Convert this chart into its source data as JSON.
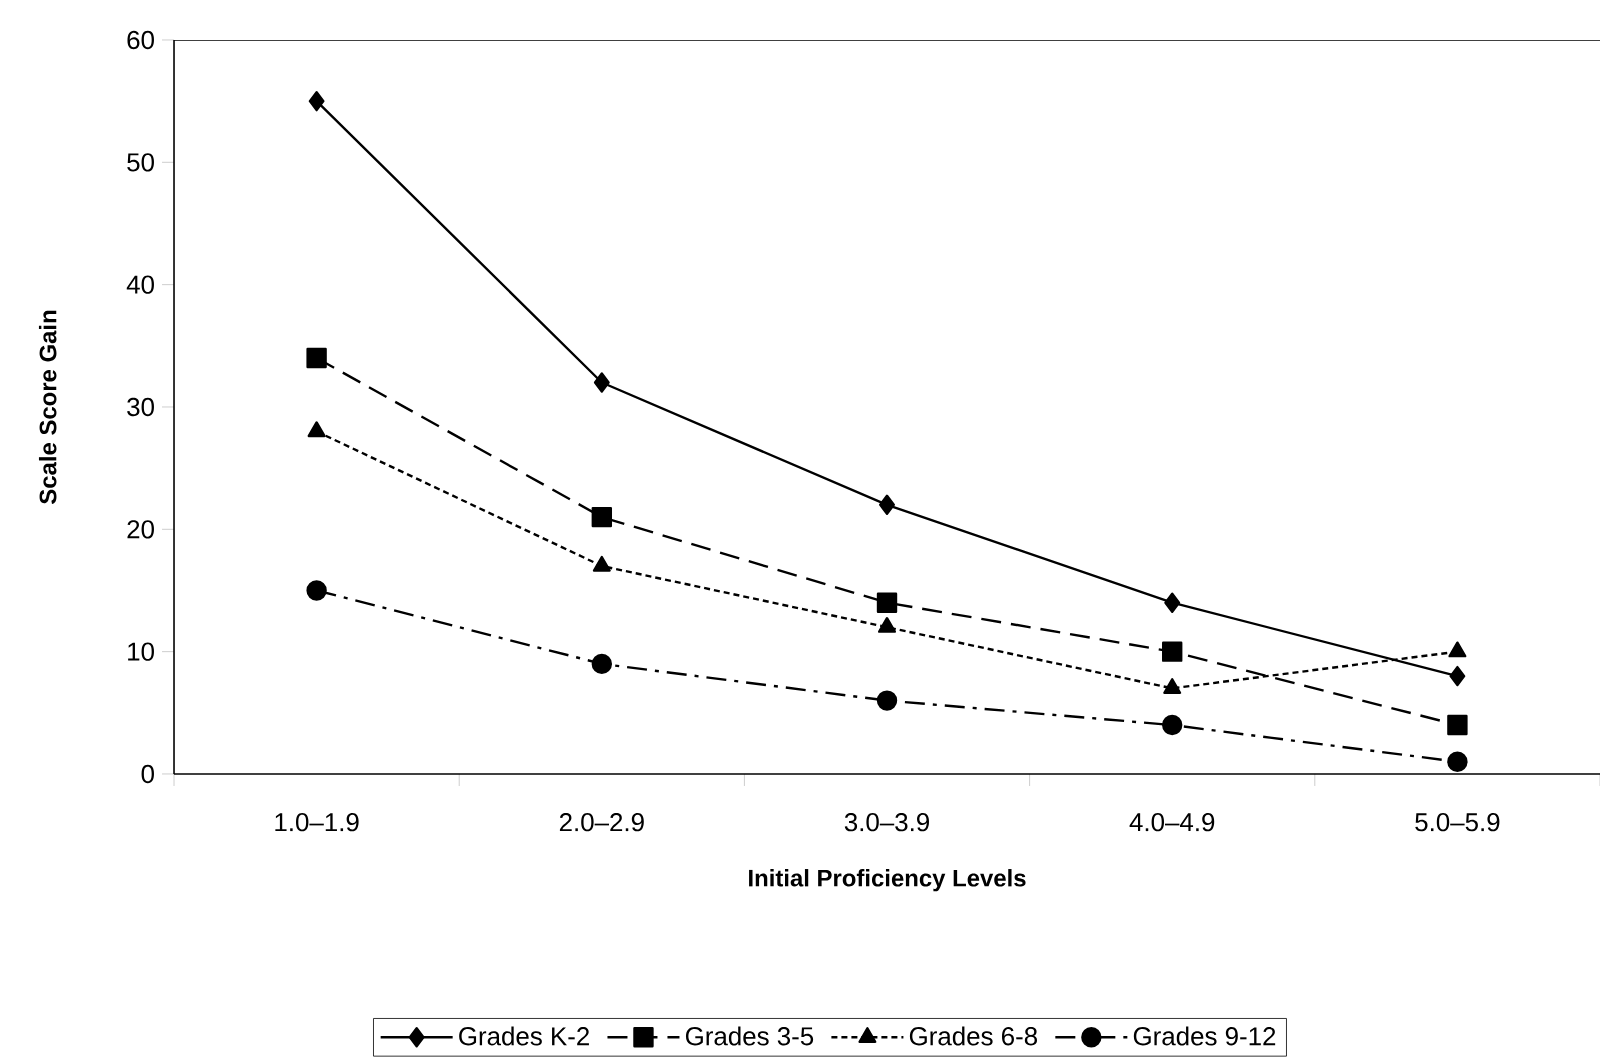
{
  "chart_data": {
    "type": "line",
    "xlabel": "Initial Proficiency Levels",
    "ylabel": "Scale Score Gain",
    "categories": [
      "1.0–1.9",
      "2.0–2.9",
      "3.0–3.9",
      "4.0–4.9",
      "5.0–5.9"
    ],
    "ylim": [
      0,
      60
    ],
    "yticks": [
      0,
      10,
      20,
      30,
      40,
      50,
      60
    ],
    "grid": false,
    "legend": "bottom",
    "series": [
      {
        "name": "Grades K-2",
        "color": "#000000",
        "values": [
          55,
          32,
          22,
          14,
          8
        ],
        "marker": "diamond",
        "line_style": "solid"
      },
      {
        "name": "Grades 3-5",
        "color": "#000000",
        "values": [
          34,
          21,
          14,
          10,
          4
        ],
        "marker": "square",
        "line_style": "dashed"
      },
      {
        "name": "Grades 6-8",
        "color": "#000000",
        "values": [
          28,
          17,
          12,
          7,
          10
        ],
        "marker": "triangle",
        "line_style": "dotted"
      },
      {
        "name": "Grades 9-12",
        "color": "#000000",
        "values": [
          15,
          9,
          6,
          4,
          1
        ],
        "marker": "circle",
        "line_style": "dashdot"
      }
    ]
  }
}
